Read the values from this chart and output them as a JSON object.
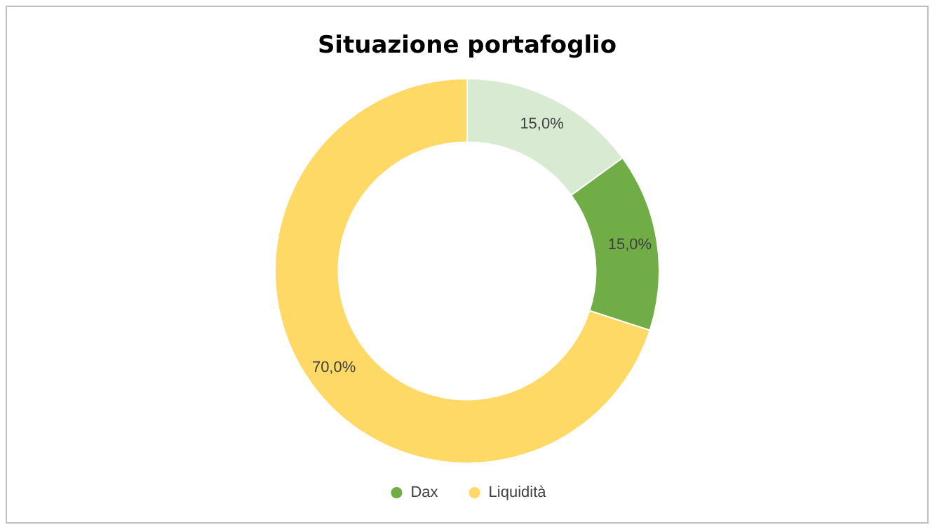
{
  "chart_data": {
    "type": "donut",
    "title": "Situazione portafoglio",
    "categories": [
      null,
      "Dax",
      "Liquidità"
    ],
    "values": [
      15,
      15,
      70
    ],
    "colors": [
      "#d9ead3",
      "#70ad47",
      "#ffd966"
    ],
    "value_labels": [
      "15,0%",
      "15,0%",
      "70,0%"
    ],
    "legend": "bottom"
  }
}
